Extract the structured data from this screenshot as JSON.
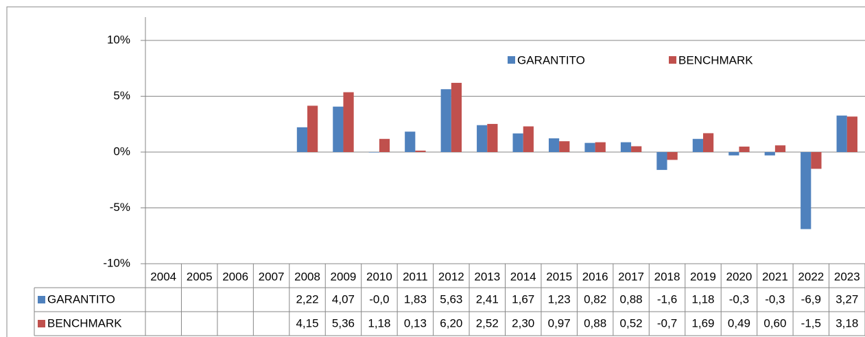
{
  "chart_data": {
    "type": "bar",
    "categories": [
      "2004",
      "2005",
      "2006",
      "2007",
      "2008",
      "2009",
      "2010",
      "2011",
      "2012",
      "2013",
      "2014",
      "2015",
      "2016",
      "2017",
      "2018",
      "2019",
      "2020",
      "2021",
      "2022",
      "2023"
    ],
    "series": [
      {
        "name": "GARANTITO",
        "color": "#4f81bd",
        "values": [
          null,
          null,
          null,
          null,
          2.22,
          4.07,
          -0.04,
          1.83,
          5.63,
          2.41,
          1.67,
          1.23,
          0.82,
          0.88,
          -1.6,
          1.18,
          -0.3,
          -0.3,
          -6.9,
          3.27
        ],
        "value_labels": [
          null,
          null,
          null,
          null,
          "2,22",
          "4,07",
          "-0,0",
          "1,83",
          "5,63",
          "2,41",
          "1,67",
          "1,23",
          "0,82",
          "0,88",
          "-1,6",
          "1,18",
          "-0,3",
          "-0,3",
          "-6,9",
          "3,27"
        ]
      },
      {
        "name": "BENCHMARK",
        "color": "#c0504d",
        "values": [
          null,
          null,
          null,
          null,
          4.15,
          5.36,
          1.18,
          0.13,
          6.2,
          2.52,
          2.3,
          0.97,
          0.88,
          0.52,
          -0.7,
          1.69,
          0.49,
          0.6,
          -1.5,
          3.18
        ],
        "value_labels": [
          null,
          null,
          null,
          null,
          "4,15",
          "5,36",
          "1,18",
          "0,13",
          "6,20",
          "2,52",
          "2,30",
          "0,97",
          "0,88",
          "0,52",
          "-0,7",
          "1,69",
          "0,49",
          "0,60",
          "-1,5",
          "3,18"
        ]
      }
    ],
    "ylim": [
      -10,
      10
    ],
    "yticks": [
      {
        "value": -10,
        "label": "-10%"
      },
      {
        "value": -5,
        "label": "-5%"
      },
      {
        "value": 0,
        "label": "0%"
      },
      {
        "value": 5,
        "label": "5%"
      },
      {
        "value": 10,
        "label": "10%"
      }
    ],
    "grid": true,
    "legend": "top-right",
    "data_table": true
  }
}
